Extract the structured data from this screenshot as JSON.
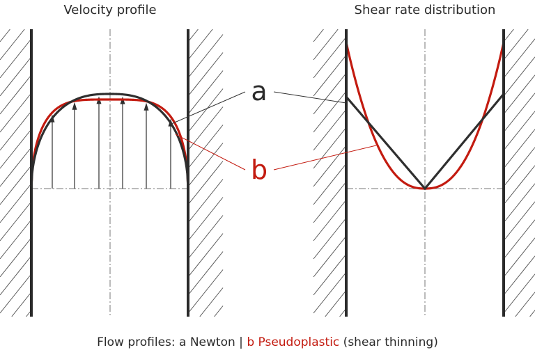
{
  "titles": {
    "left": "Velocity profile",
    "right": "Shear rate distribution"
  },
  "callouts": {
    "a": "a",
    "b": "b"
  },
  "caption": {
    "part1": "Flow profiles: a Newton | ",
    "part2": "b Pseudoplastic",
    "part3": " (shear thinning)"
  },
  "colors": {
    "newtonian": "#2f2f2f",
    "pseudoplastic": "#c31b10",
    "wall": "#2a2a2a",
    "hatch": "#555555",
    "centerline": "#777777"
  }
}
